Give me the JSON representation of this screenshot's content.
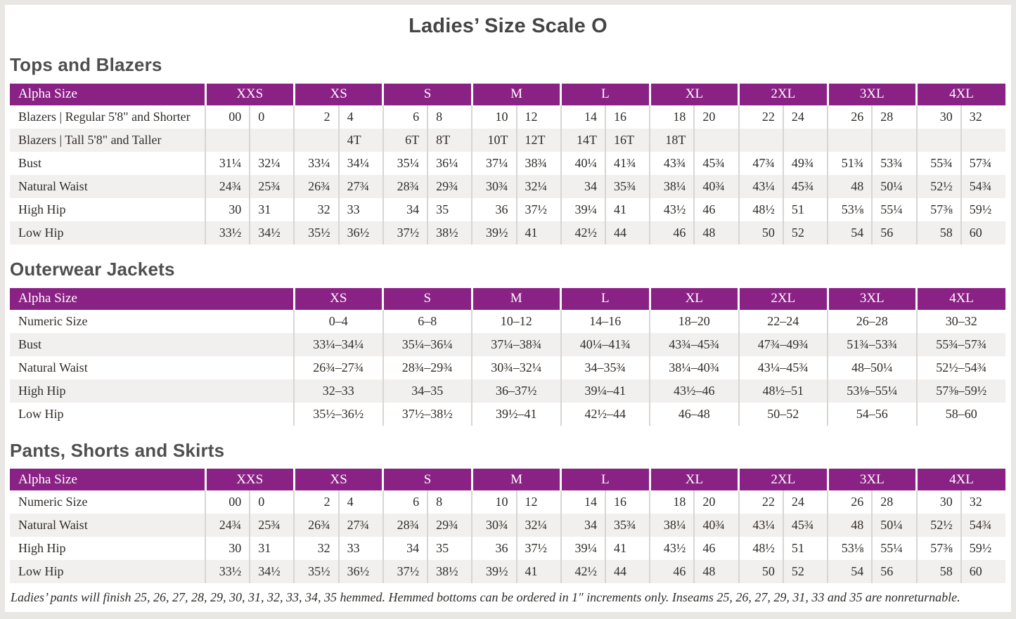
{
  "title": "Ladies’ Size Scale O",
  "colors": {
    "header_bg": "#8a2184",
    "header_text": "#ffffff",
    "row_stripe": "#f2f0ee",
    "grid_line": "#d8d6d3",
    "page_edge": "#e9e7e4",
    "text": "#2f2c29",
    "heading": "#4f4f4f",
    "title": "#454545"
  },
  "sections": [
    {
      "heading": "Tops and Blazers",
      "type": "paired",
      "header": [
        "Alpha Size",
        "XXS",
        "XS",
        "S",
        "M",
        "L",
        "XL",
        "2XL",
        "3XL",
        "4XL"
      ],
      "rows": [
        {
          "label": "Blazers  |  Regular 5'8\" and Shorter",
          "values": [
            [
              "00",
              "0"
            ],
            [
              "2",
              "4"
            ],
            [
              "6",
              "8"
            ],
            [
              "10",
              "12"
            ],
            [
              "14",
              "16"
            ],
            [
              "18",
              "20"
            ],
            [
              "22",
              "24"
            ],
            [
              "26",
              "28"
            ],
            [
              "30",
              "32"
            ]
          ]
        },
        {
          "label": "Blazers  |  Tall 5'8\" and Taller",
          "values": [
            [
              "",
              ""
            ],
            [
              "",
              "4T"
            ],
            [
              "6T",
              "8T"
            ],
            [
              "10T",
              "12T"
            ],
            [
              "14T",
              "16T"
            ],
            [
              "18T",
              ""
            ],
            [
              "",
              ""
            ],
            [
              "",
              ""
            ],
            [
              "",
              ""
            ]
          ]
        },
        {
          "label": "Bust",
          "values": [
            [
              "31¼",
              "32¼"
            ],
            [
              "33¼",
              "34¼"
            ],
            [
              "35¼",
              "36¼"
            ],
            [
              "37¼",
              "38¾"
            ],
            [
              "40¼",
              "41¾"
            ],
            [
              "43¾",
              "45¾"
            ],
            [
              "47¾",
              "49¾"
            ],
            [
              "51¾",
              "53¾"
            ],
            [
              "55¾",
              "57¾"
            ]
          ]
        },
        {
          "label": "Natural Waist",
          "values": [
            [
              "24¾",
              "25¾"
            ],
            [
              "26¾",
              "27¾"
            ],
            [
              "28¾",
              "29¾"
            ],
            [
              "30¾",
              "32¼"
            ],
            [
              "34",
              "35¾"
            ],
            [
              "38¼",
              "40¾"
            ],
            [
              "43¼",
              "45¾"
            ],
            [
              "48",
              "50¼"
            ],
            [
              "52½",
              "54¾"
            ]
          ]
        },
        {
          "label": "High Hip",
          "values": [
            [
              "30",
              "31"
            ],
            [
              "32",
              "33"
            ],
            [
              "34",
              "35"
            ],
            [
              "36",
              "37½"
            ],
            [
              "39¼",
              "41"
            ],
            [
              "43½",
              "46"
            ],
            [
              "48½",
              "51"
            ],
            [
              "53⅛",
              "55¼"
            ],
            [
              "57⅜",
              "59½"
            ]
          ]
        },
        {
          "label": "Low Hip",
          "values": [
            [
              "33½",
              "34½"
            ],
            [
              "35½",
              "36½"
            ],
            [
              "37½",
              "38½"
            ],
            [
              "39½",
              "41"
            ],
            [
              "42½",
              "44"
            ],
            [
              "46",
              "48"
            ],
            [
              "50",
              "52"
            ],
            [
              "54",
              "56"
            ],
            [
              "58",
              "60"
            ]
          ]
        }
      ]
    },
    {
      "heading": "Outerwear Jackets",
      "type": "range",
      "header": [
        "Alpha Size",
        "XS",
        "S",
        "M",
        "L",
        "XL",
        "2XL",
        "3XL",
        "4XL"
      ],
      "rows": [
        {
          "label": "Numeric Size",
          "values": [
            "0–4",
            "6–8",
            "10–12",
            "14–16",
            "18–20",
            "22–24",
            "26–28",
            "30–32"
          ]
        },
        {
          "label": "Bust",
          "values": [
            "33¼–34¼",
            "35¼–36¼",
            "37¼–38¾",
            "40¼–41¾",
            "43¾–45¾",
            "47¾–49¾",
            "51¾–53¾",
            "55¾–57¾"
          ]
        },
        {
          "label": "Natural Waist",
          "values": [
            "26¾–27¾",
            "28¾–29¾",
            "30¾–32¼",
            "34–35¾",
            "38¼–40¾",
            "43¼–45¾",
            "48–50¼",
            "52½–54¾"
          ]
        },
        {
          "label": "High Hip",
          "values": [
            "32–33",
            "34–35",
            "36–37½",
            "39¼–41",
            "43½–46",
            "48½–51",
            "53⅛–55¼",
            "57⅜–59½"
          ]
        },
        {
          "label": "Low Hip",
          "values": [
            "35½–36½",
            "37½–38½",
            "39½–41",
            "42½–44",
            "46–48",
            "50–52",
            "54–56",
            "58–60"
          ]
        }
      ]
    },
    {
      "heading": "Pants, Shorts and Skirts",
      "type": "paired",
      "header": [
        "Alpha Size",
        "XXS",
        "XS",
        "S",
        "M",
        "L",
        "XL",
        "2XL",
        "3XL",
        "4XL"
      ],
      "rows": [
        {
          "label": "Numeric Size",
          "values": [
            [
              "00",
              "0"
            ],
            [
              "2",
              "4"
            ],
            [
              "6",
              "8"
            ],
            [
              "10",
              "12"
            ],
            [
              "14",
              "16"
            ],
            [
              "18",
              "20"
            ],
            [
              "22",
              "24"
            ],
            [
              "26",
              "28"
            ],
            [
              "30",
              "32"
            ]
          ]
        },
        {
          "label": "Natural Waist",
          "values": [
            [
              "24¾",
              "25¾"
            ],
            [
              "26¾",
              "27¾"
            ],
            [
              "28¾",
              "29¾"
            ],
            [
              "30¾",
              "32¼"
            ],
            [
              "34",
              "35¾"
            ],
            [
              "38¼",
              "40¾"
            ],
            [
              "43¼",
              "45¾"
            ],
            [
              "48",
              "50¼"
            ],
            [
              "52½",
              "54¾"
            ]
          ]
        },
        {
          "label": "High Hip",
          "values": [
            [
              "30",
              "31"
            ],
            [
              "32",
              "33"
            ],
            [
              "34",
              "35"
            ],
            [
              "36",
              "37½"
            ],
            [
              "39¼",
              "41"
            ],
            [
              "43½",
              "46"
            ],
            [
              "48½",
              "51"
            ],
            [
              "53⅛",
              "55¼"
            ],
            [
              "57⅜",
              "59½"
            ]
          ]
        },
        {
          "label": "Low Hip",
          "values": [
            [
              "33½",
              "34½"
            ],
            [
              "35½",
              "36½"
            ],
            [
              "37½",
              "38½"
            ],
            [
              "39½",
              "41"
            ],
            [
              "42½",
              "44"
            ],
            [
              "46",
              "48"
            ],
            [
              "50",
              "52"
            ],
            [
              "54",
              "56"
            ],
            [
              "58",
              "60"
            ]
          ]
        }
      ],
      "footnote": "Ladies’ pants will finish 25, 26, 27, 28, 29, 30, 31, 32, 33, 34, 35 hemmed. Hemmed bottoms can be ordered in 1″ increments only. Inseams 25, 26, 27, 29, 31, 33 and 35 are nonreturnable."
    }
  ]
}
